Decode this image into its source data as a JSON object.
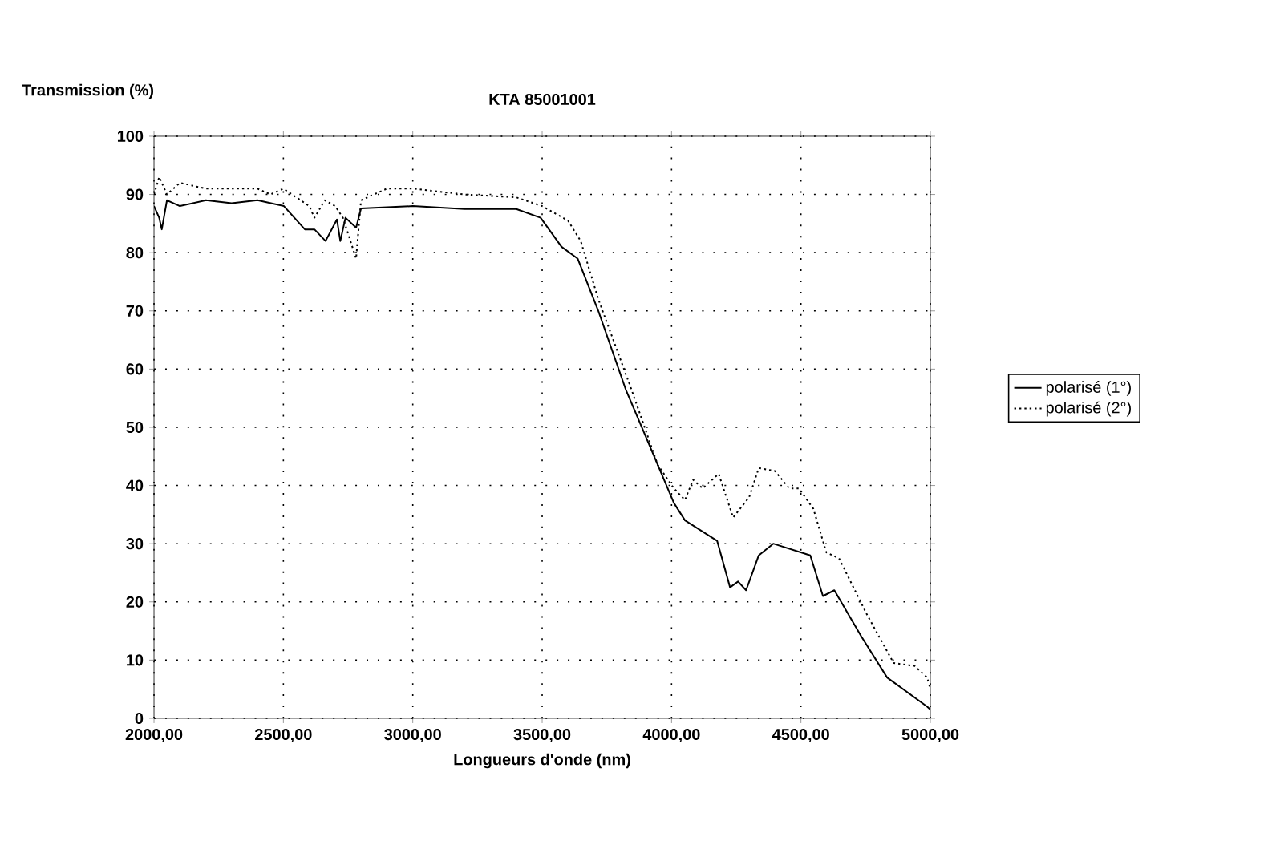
{
  "chart_data": {
    "type": "line",
    "title": "KTA 85001001",
    "xlabel": "Longueurs d'onde (nm)",
    "ylabel": "Transmission (%)",
    "xlim": [
      2000,
      5000
    ],
    "xticks": [
      {
        "value": 2000,
        "label": "2000,00"
      },
      {
        "value": 2500,
        "label": "2500,00"
      },
      {
        "value": 3000,
        "label": "3000,00"
      },
      {
        "value": 3500,
        "label": "3500,00"
      },
      {
        "value": 4000,
        "label": "4000,00"
      },
      {
        "value": 4500,
        "label": "4500,00"
      },
      {
        "value": 5000,
        "label": "5000,00"
      }
    ],
    "ylim": [
      0,
      100
    ],
    "yticks": [
      0,
      10,
      20,
      30,
      40,
      50,
      60,
      70,
      80,
      90,
      100
    ],
    "grid": true,
    "legend": "right",
    "marker": "none",
    "series": [
      {
        "name": "polarisé (1°)",
        "color": "#000000",
        "line_style": "solid",
        "x": [
          2000,
          2020,
          2030,
          2050,
          2100,
          2200,
          2300,
          2400,
          2502,
          2583,
          2620,
          2663,
          2707,
          2720,
          2740,
          2781,
          2800,
          3000,
          3200,
          3400,
          3494,
          3575,
          3637,
          3717,
          3823,
          3928,
          4009,
          4052,
          4176,
          4226,
          4257,
          4288,
          4337,
          4393,
          4536,
          4585,
          4629,
          4734,
          4833,
          4988,
          5000
        ],
        "values": [
          88,
          86,
          84,
          89,
          88,
          89,
          88.5,
          89,
          88,
          84,
          84,
          82,
          85.7,
          82,
          86,
          84.3,
          87.6,
          88,
          87.5,
          87.5,
          86,
          81,
          79,
          70,
          56.5,
          45.5,
          37,
          34,
          30.5,
          22.5,
          23.5,
          22,
          28,
          30,
          28,
          21,
          22,
          14,
          7,
          2,
          1.5
        ]
      },
      {
        "name": "polarisé (2°)",
        "color": "#000000",
        "line_style": "dotted",
        "x": [
          2000,
          2020,
          2050,
          2100,
          2200,
          2300,
          2400,
          2450,
          2500,
          2600,
          2620,
          2660,
          2700,
          2730,
          2781,
          2800,
          2900,
          3000,
          3200,
          3400,
          3500,
          3600,
          3649,
          3717,
          3841,
          3947,
          4009,
          4052,
          4083,
          4120,
          4182,
          4238,
          4300,
          4337,
          4399,
          4455,
          4492,
          4548,
          4598,
          4647,
          4753,
          4858,
          4939,
          4988,
          5000
        ],
        "values": [
          90,
          93,
          90,
          92,
          91,
          91,
          91,
          90,
          91,
          88,
          86,
          89,
          88,
          86,
          79,
          89,
          91,
          91,
          90,
          89.5,
          88,
          85.5,
          82,
          72,
          57,
          43.5,
          39.5,
          37.5,
          41,
          39.5,
          42,
          34.5,
          38,
          43,
          42.5,
          39.5,
          39.5,
          36,
          28.5,
          27.5,
          18,
          9.5,
          9,
          7,
          5
        ]
      }
    ]
  }
}
